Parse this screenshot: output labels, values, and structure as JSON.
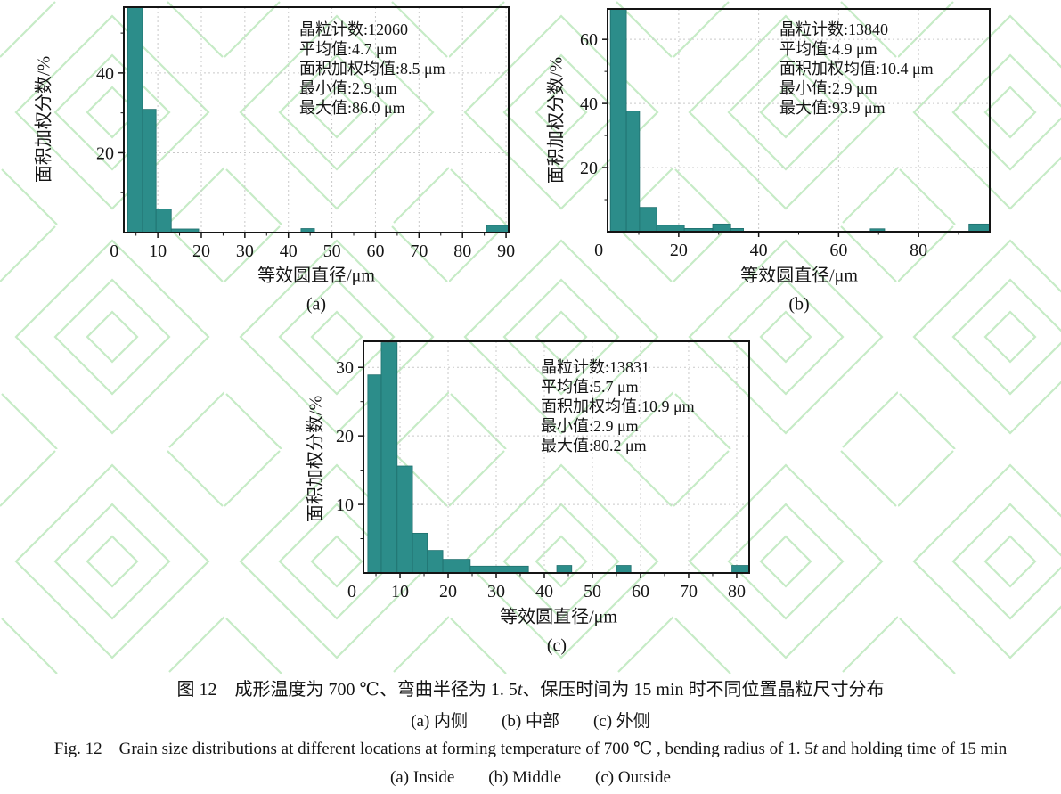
{
  "colors": {
    "bar": "#2c8d8a",
    "bar_edge": "#1f6f6d",
    "frame": "#141414",
    "grid": "#c9c9c9",
    "watermark": "#c6ebc6"
  },
  "chart_data": [
    {
      "type": "bar",
      "subfigure": "(a)",
      "xlabel": "等效圆直径/μm",
      "ylabel": "面积加权分数/%",
      "stats": [
        "晶粒计数:12060",
        "平均值:4.7 μm",
        "面积加权均值:8.5 μm",
        "最小值:2.9 μm",
        "最大值:86.0 μm"
      ],
      "x_ticks": [
        0,
        10,
        20,
        30,
        40,
        50,
        60,
        70,
        80,
        90
      ],
      "y_ticks": [
        0,
        20,
        40
      ],
      "xlim": [
        2.2,
        90.6
      ],
      "ylim": [
        0,
        56.5
      ],
      "grid": true,
      "bars": [
        {
          "x0": 3.1,
          "x1": 6.5,
          "v": 57
        },
        {
          "x0": 6.5,
          "x1": 9.6,
          "v": 30.9
        },
        {
          "x0": 9.6,
          "x1": 13.1,
          "v": 5.9
        },
        {
          "x0": 13.1,
          "x1": 19.4,
          "v": 0.9
        },
        {
          "x0": 42.9,
          "x1": 46.0,
          "v": 1.0
        },
        {
          "x0": 85.5,
          "x1": 90.6,
          "v": 1.8
        }
      ]
    },
    {
      "type": "bar",
      "subfigure": "(b)",
      "xlabel": "等效圆直径/μm",
      "ylabel": "面积加权分数/%",
      "stats": [
        "晶粒计数:13840",
        "平均值:4.9 μm",
        "面积加权均值:10.4 μm",
        "最小值:2.9 μm",
        "最大值:93.9 μm"
      ],
      "x_ticks": [
        0,
        20,
        40,
        60,
        80
      ],
      "y_ticks": [
        0,
        20,
        40,
        60
      ],
      "xlim": [
        2.2,
        97.8
      ],
      "ylim": [
        0,
        69.5
      ],
      "grid": true,
      "bars": [
        {
          "x0": 2.9,
          "x1": 6.9,
          "v": 70
        },
        {
          "x0": 6.9,
          "x1": 10.2,
          "v": 37.6
        },
        {
          "x0": 10.2,
          "x1": 14.5,
          "v": 7.6
        },
        {
          "x0": 14.5,
          "x1": 21.4,
          "v": 2.0
        },
        {
          "x0": 21.4,
          "x1": 28.5,
          "v": 1.0
        },
        {
          "x0": 28.5,
          "x1": 33.0,
          "v": 2.4
        },
        {
          "x0": 33.0,
          "x1": 36.2,
          "v": 1.0
        },
        {
          "x0": 67.9,
          "x1": 71.5,
          "v": 0.9
        },
        {
          "x0": 92.6,
          "x1": 97.8,
          "v": 2.4
        }
      ]
    },
    {
      "type": "bar",
      "subfigure": "(c)",
      "xlabel": "等效圆直径/μm",
      "ylabel": "面积加权分数/%",
      "stats": [
        "晶粒计数:13831",
        "平均值:5.7 μm",
        "面积加权均值:10.9 μm",
        "最小值:2.9 μm",
        "最大值:80.2 μm"
      ],
      "x_ticks": [
        0,
        10,
        20,
        30,
        40,
        50,
        60,
        70,
        80
      ],
      "y_ticks": [
        0,
        10,
        20,
        30
      ],
      "xlim": [
        2.4,
        82.6
      ],
      "ylim": [
        0,
        33.8
      ],
      "grid": true,
      "bars": [
        {
          "x0": 3.3,
          "x1": 6.1,
          "v": 28.9
        },
        {
          "x0": 6.1,
          "x1": 9.4,
          "v": 33.6
        },
        {
          "x0": 9.4,
          "x1": 12.6,
          "v": 15.6
        },
        {
          "x0": 12.6,
          "x1": 15.7,
          "v": 5.8
        },
        {
          "x0": 15.7,
          "x1": 18.9,
          "v": 3.3
        },
        {
          "x0": 18.9,
          "x1": 24.6,
          "v": 2.0
        },
        {
          "x0": 24.6,
          "x1": 36.7,
          "v": 1.0
        },
        {
          "x0": 42.6,
          "x1": 45.7,
          "v": 1.1
        },
        {
          "x0": 55.0,
          "x1": 58.0,
          "v": 1.1
        },
        {
          "x0": 79.0,
          "x1": 82.6,
          "v": 1.1
        }
      ]
    }
  ],
  "captions": {
    "zh_main_pre": "图 12　成形温度为 700 ℃、弯曲半径为 1. 5",
    "zh_main_t": "t",
    "zh_main_post": "、保压时间为 15 min 时不同位置晶粒尺寸分布",
    "zh_sub": "(a) 内侧　　(b) 中部　　(c) 外侧",
    "en_main_pre": "Fig. 12 Grain size distributions at different locations at forming temperature of 700 ℃ , bending radius of 1. 5",
    "en_main_t": "t",
    "en_main_post": " and holding time of 15 min",
    "en_sub": "(a) Inside  (b) Middle  (c) Outside"
  }
}
